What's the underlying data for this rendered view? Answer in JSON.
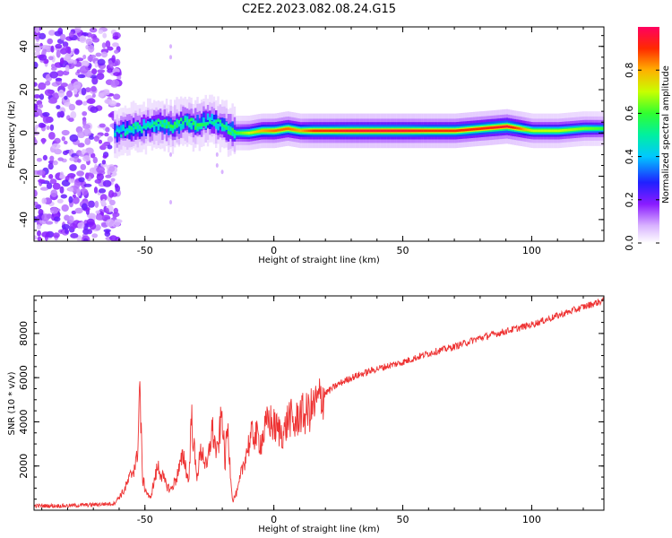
{
  "title": "C2E2.2023.082.08.24.G15",
  "chart_data": [
    {
      "type": "heatmap",
      "xlabel": "Height of straight line (km)",
      "ylabel": "Frequency (Hz)",
      "xlim": [
        -93,
        128
      ],
      "ylim": [
        -50,
        49
      ],
      "xticks": [
        -50,
        0,
        50,
        100
      ],
      "xtick_labels": [
        "-50",
        "0",
        "50",
        "100"
      ],
      "yticks": [
        -40,
        -20,
        0,
        20,
        40
      ],
      "ytick_labels": [
        "-40",
        "-20",
        "0",
        "20",
        "40"
      ],
      "colorbar": {
        "label": "Normalized spectral amplitude",
        "range": [
          0,
          1
        ],
        "ticks": [
          0.0,
          0.2,
          0.4,
          0.6,
          0.8
        ],
        "tick_labels": [
          "0.0",
          "0.2",
          "0.4",
          "0.6",
          "0.8"
        ],
        "colormap": "rainbow"
      },
      "ridge": {
        "x": [
          -62,
          -58,
          -55,
          -50,
          -45,
          -40,
          -35,
          -30,
          -25,
          -20,
          -15,
          -10,
          -5,
          0,
          5,
          10,
          15,
          20,
          30,
          40,
          50,
          60,
          70,
          80,
          90,
          95,
          100,
          110,
          120,
          128
        ],
        "freq": [
          0,
          1,
          2,
          3,
          4,
          3,
          5,
          4,
          6,
          3,
          0,
          0,
          1,
          1,
          2,
          1,
          1,
          1,
          1,
          1,
          1,
          1,
          1,
          2,
          3,
          2,
          1,
          1,
          2,
          2
        ],
        "amplitude": [
          0.45,
          0.5,
          0.55,
          0.5,
          0.55,
          0.6,
          0.55,
          0.6,
          0.5,
          0.55,
          0.6,
          0.7,
          0.8,
          0.85,
          0.85,
          0.8,
          0.9,
          0.9,
          0.95,
          0.95,
          0.95,
          0.9,
          0.9,
          0.9,
          0.95,
          0.85,
          0.7,
          0.7,
          0.65,
          0.6
        ]
      },
      "noise_region_x": [
        -93,
        -60
      ]
    },
    {
      "type": "line",
      "xlabel": "Height of straight line (km)",
      "ylabel": "SNR (10 * v/v)",
      "xlim": [
        -93,
        128
      ],
      "ylim": [
        0,
        9700
      ],
      "xticks": [
        -50,
        0,
        50,
        100
      ],
      "xtick_labels": [
        "-50",
        "0",
        "50",
        "100"
      ],
      "yticks": [
        2000,
        4000,
        6000,
        8000
      ],
      "ytick_labels": [
        "2000",
        "4000",
        "6000",
        "8000"
      ],
      "color": "#ee3333",
      "series": [
        {
          "x": [
            -93,
            -80,
            -70,
            -62,
            -58,
            -55,
            -53,
            -52,
            -51,
            -50,
            -48,
            -45,
            -42,
            -40,
            -38,
            -35,
            -33,
            -32,
            -30,
            -28,
            -26,
            -24,
            -22,
            -20,
            -19,
            -18,
            -16,
            -14,
            -12,
            -10,
            -8,
            -5,
            -2,
            0,
            2,
            4,
            6,
            8,
            10,
            12,
            15,
            18,
            20,
            25,
            30,
            40,
            50,
            60,
            70,
            80,
            90,
            100,
            110,
            120,
            128
          ],
          "y": [
            200,
            200,
            250,
            300,
            900,
            1700,
            2300,
            5800,
            1500,
            1000,
            500,
            2000,
            1200,
            900,
            1400,
            2500,
            1200,
            4300,
            1500,
            2800,
            1800,
            3700,
            2500,
            4500,
            2000,
            3800,
            400,
            900,
            2000,
            2900,
            3500,
            3100,
            4100,
            3800,
            3600,
            3500,
            4300,
            3800,
            4400,
            4300,
            4600,
            5100,
            5300,
            5700,
            6000,
            6400,
            6700,
            7100,
            7400,
            7800,
            8100,
            8400,
            8800,
            9200,
            9500
          ]
        }
      ]
    }
  ]
}
